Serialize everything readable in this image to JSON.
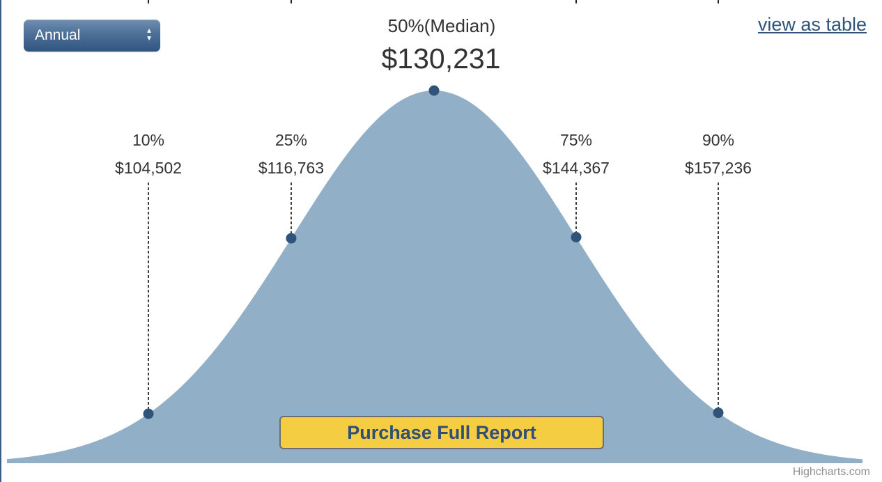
{
  "controls": {
    "period_select": {
      "selected": "Annual",
      "arrows_icon": "up-down-arrows-icon"
    },
    "view_table_link": "view as table",
    "purchase_button": "Purchase Full Report",
    "credits": "Highcharts.com"
  },
  "colors": {
    "area_fill": "#92afc8",
    "marker": "#2f5379",
    "button_fill": "#f5cd43",
    "button_text": "#2f4f75"
  },
  "chart_data": {
    "type": "area",
    "title": "",
    "xlabel": "",
    "ylabel": "",
    "distribution": "bell-curve",
    "grid": false,
    "legend": "none",
    "percentiles": [
      {
        "percentile": "10%",
        "value": "$104,502",
        "amount": 104502
      },
      {
        "percentile": "25%",
        "value": "$116,763",
        "amount": 116763
      },
      {
        "percentile": "50%(Median)",
        "value": "$130,231",
        "amount": 130231
      },
      {
        "percentile": "75%",
        "value": "$144,367",
        "amount": 144367
      },
      {
        "percentile": "90%",
        "value": "$157,236",
        "amount": 157236
      }
    ]
  }
}
